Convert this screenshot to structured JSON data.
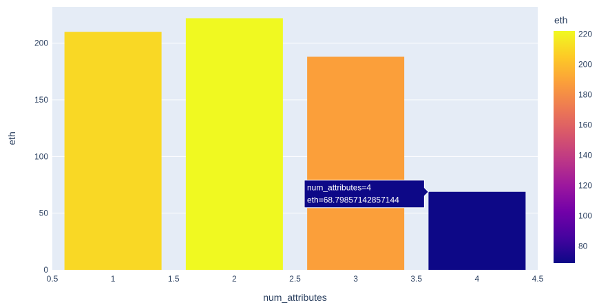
{
  "chart_data": {
    "type": "bar",
    "x": [
      1,
      2,
      3,
      4
    ],
    "values": [
      210,
      222,
      188,
      68.79857142857144
    ],
    "xlabel": "num_attributes",
    "ylabel": "eth",
    "xlim": [
      0.5,
      4.5
    ],
    "ylim": [
      0,
      232
    ],
    "x_ticks": [
      "0.5",
      "1",
      "1.5",
      "2",
      "2.5",
      "3",
      "3.5",
      "4",
      "4.5"
    ],
    "y_ticks": [
      "0",
      "50",
      "100",
      "150",
      "200"
    ],
    "grid": true,
    "colorbar": {
      "title": "eth",
      "range": [
        68.8,
        222
      ],
      "ticks": [
        "80",
        "100",
        "120",
        "140",
        "160",
        "180",
        "200",
        "220"
      ],
      "colorscale": "plasma"
    },
    "tooltip": {
      "lines": [
        "num_attributes=4",
        "eth=68.79857142857144"
      ],
      "target_index": 3
    }
  },
  "colors": {
    "plot_bg": "#e5ecf6",
    "grid": "#ffffff",
    "tick_text": "#2a3f5f"
  }
}
